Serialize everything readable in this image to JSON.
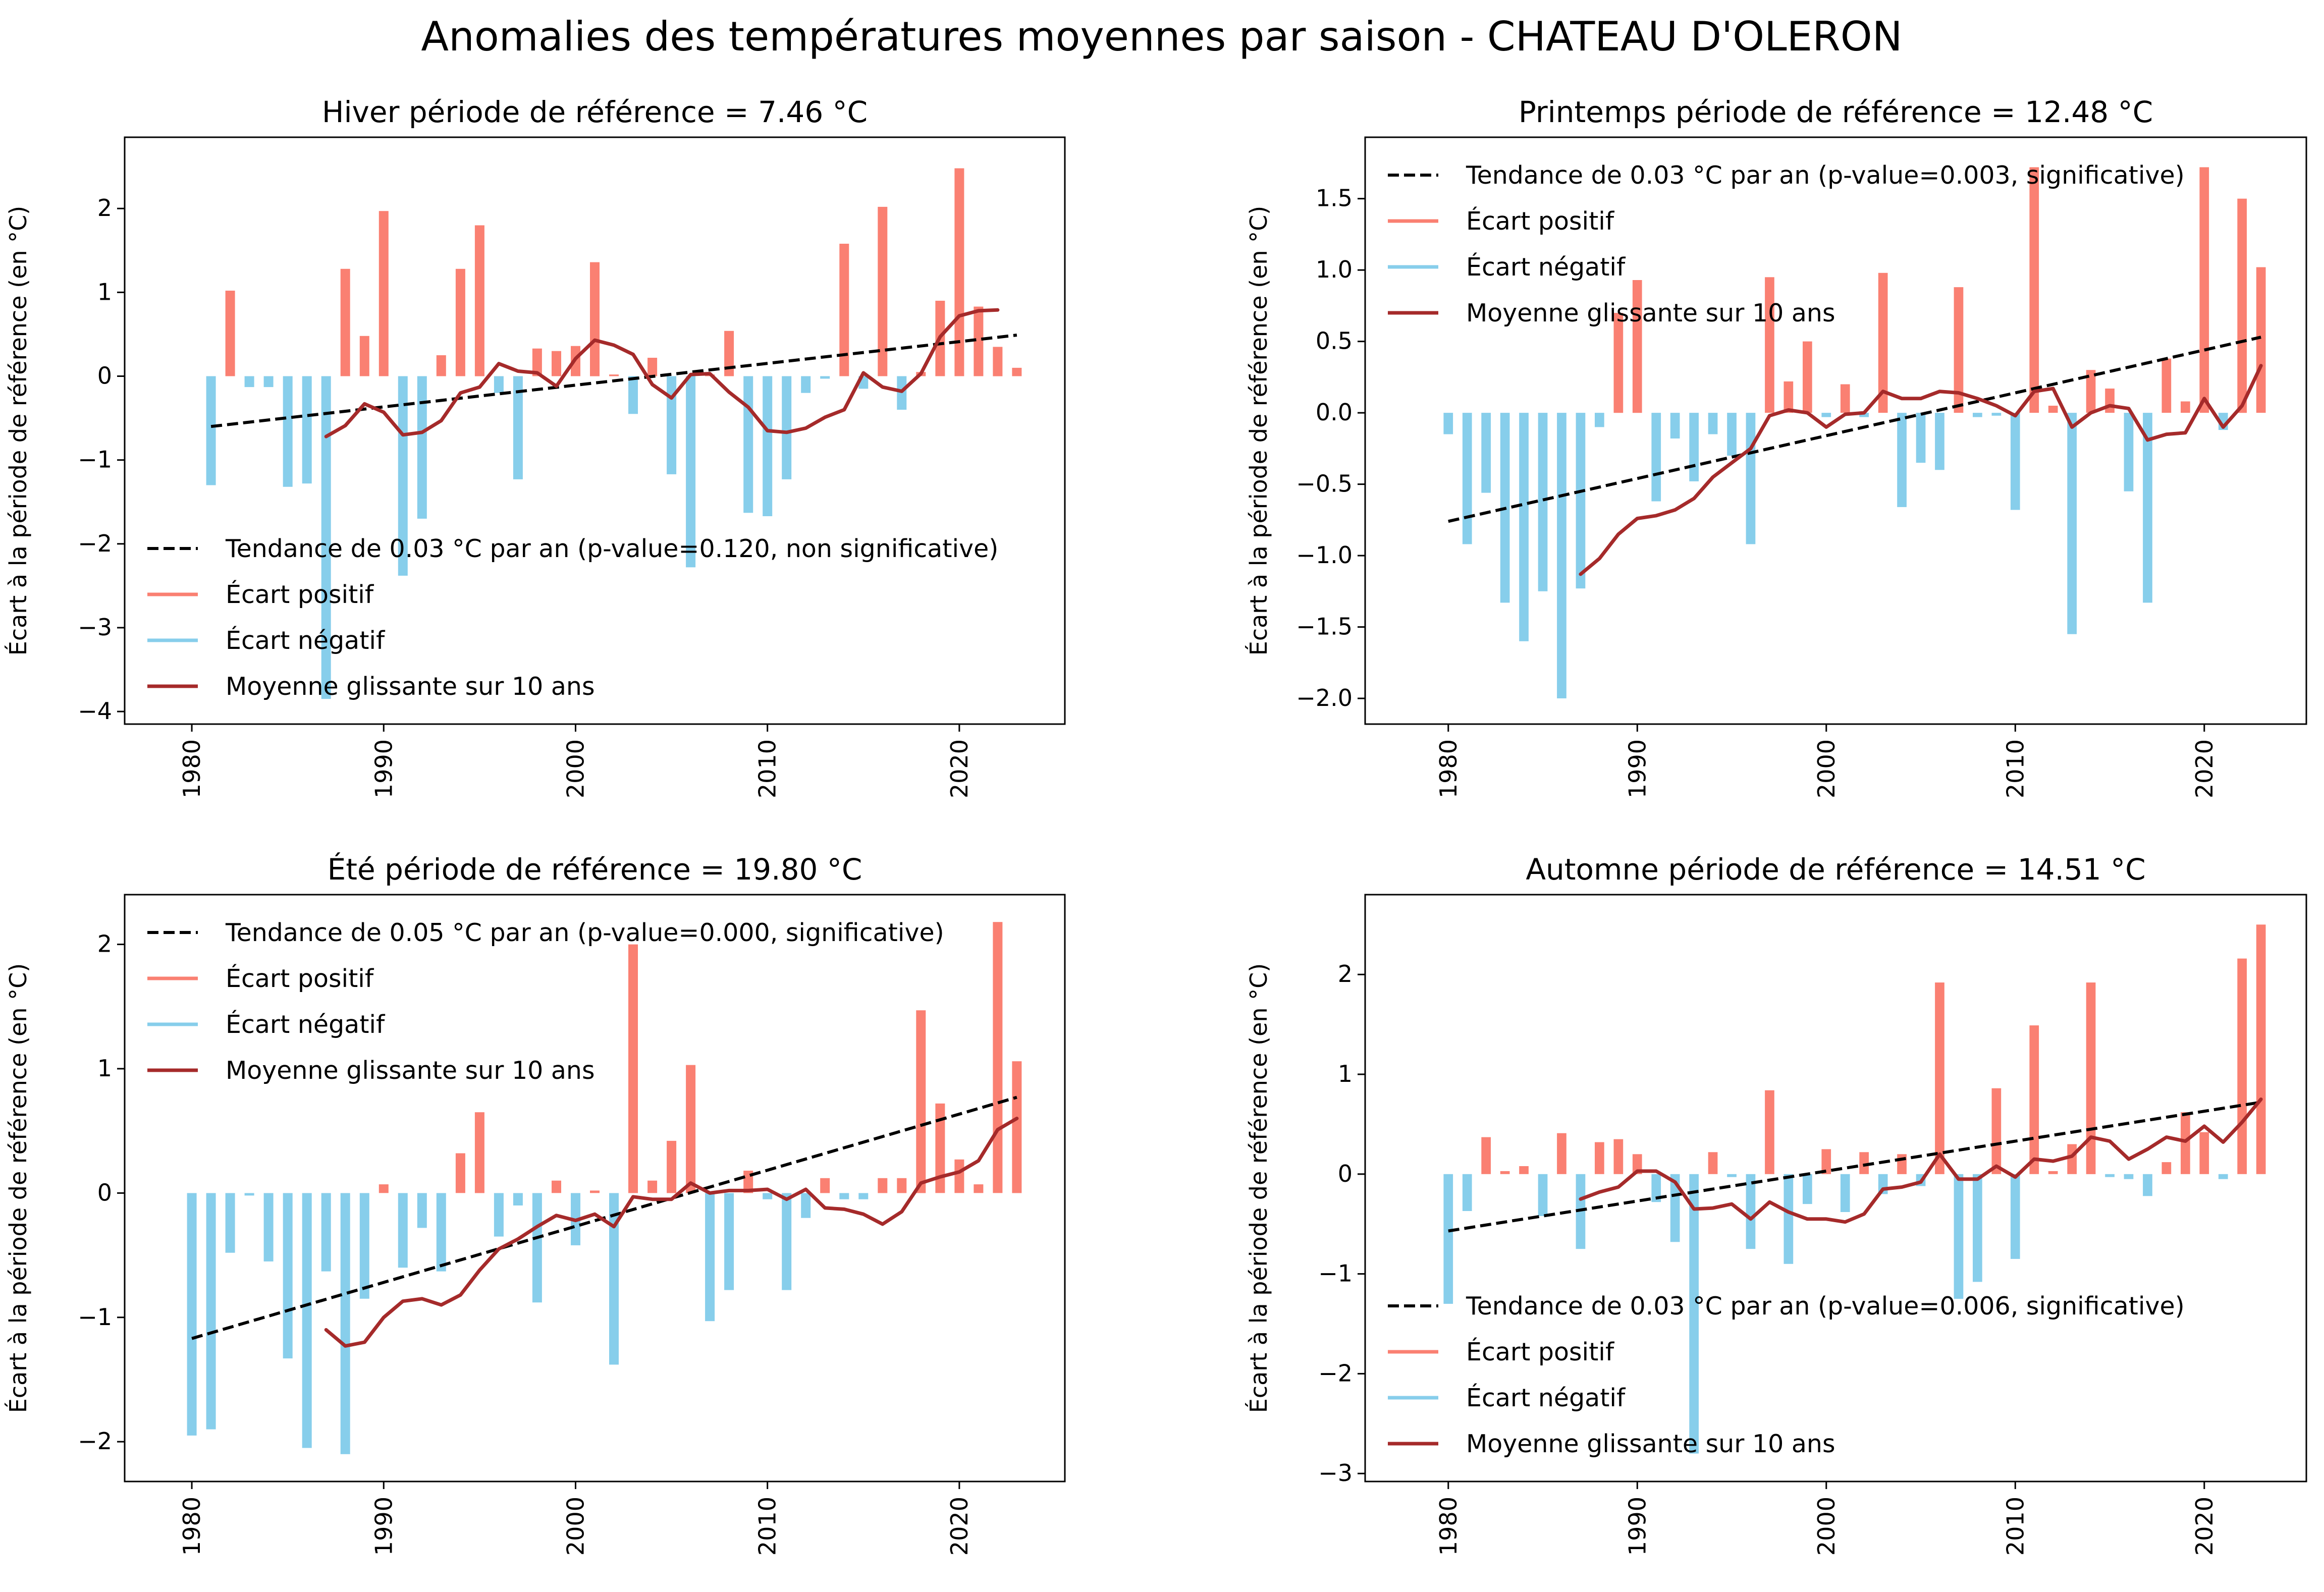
{
  "title": "Anomalies des températures moyennes par saison - CHATEAU D'OLERON",
  "colors": {
    "positive": "#fa8072",
    "negative": "#87ceeb",
    "rolling": "#a52a2a",
    "trend": "#000000",
    "axis": "#000000",
    "background": "#ffffff"
  },
  "chart_data": [
    {
      "type": "bar",
      "title": "Hiver période de référence = 7.46 °C",
      "ylabel": "Écart à la période de référence (en °C)",
      "xlabel": "",
      "xlim": [
        1976.5,
        2025.5
      ],
      "ylim": [
        -4.15,
        2.85
      ],
      "xticks": [
        1980,
        1990,
        2000,
        2010,
        2020
      ],
      "yticks": [
        -4,
        -3,
        -2,
        -1,
        0,
        1,
        2
      ],
      "grid": false,
      "legend_position": "bottom-left",
      "legend": [
        {
          "label": "Tendance de 0.03 °C par an (p-value=0.120, non significative)",
          "kind": "trend"
        },
        {
          "label": "Écart positif",
          "kind": "positive"
        },
        {
          "label": "Écart négatif",
          "kind": "negative"
        },
        {
          "label": "Moyenne glissante sur 10 ans",
          "kind": "rolling"
        }
      ],
      "x": [
        1981,
        1982,
        1983,
        1984,
        1985,
        1986,
        1987,
        1988,
        1989,
        1990,
        1991,
        1992,
        1993,
        1994,
        1995,
        1996,
        1997,
        1998,
        1999,
        2000,
        2001,
        2002,
        2003,
        2004,
        2005,
        2006,
        2007,
        2008,
        2009,
        2010,
        2011,
        2012,
        2013,
        2014,
        2015,
        2016,
        2017,
        2018,
        2019,
        2020,
        2021,
        2022,
        2023
      ],
      "values": [
        -1.3,
        1.02,
        -0.13,
        -0.13,
        -1.32,
        -1.28,
        -3.85,
        1.28,
        0.48,
        1.97,
        -2.38,
        -1.7,
        0.25,
        1.28,
        1.8,
        -0.2,
        -1.23,
        0.33,
        0.3,
        0.36,
        1.36,
        0.02,
        -0.45,
        0.22,
        -1.17,
        -2.28,
        0.02,
        0.54,
        -1.63,
        -1.67,
        -1.23,
        -0.2,
        -0.03,
        1.58,
        -0.15,
        2.02,
        -0.4,
        0.05,
        0.9,
        2.48,
        0.83,
        0.35,
        0.1
      ],
      "rolling_mean": {
        "x": [
          1987,
          1988,
          1989,
          1990,
          1991,
          1992,
          1993,
          1994,
          1995,
          1996,
          1997,
          1998,
          1999,
          2000,
          2001,
          2002,
          2003,
          2004,
          2005,
          2006,
          2007,
          2008,
          2009,
          2010,
          2011,
          2012,
          2013,
          2014,
          2015,
          2016,
          2017,
          2018,
          2019,
          2020,
          2021,
          2022,
          2023
        ],
        "values": [
          -0.72,
          -0.59,
          -0.33,
          -0.43,
          -0.7,
          -0.67,
          -0.53,
          -0.2,
          -0.13,
          0.15,
          0.06,
          0.04,
          -0.12,
          0.21,
          0.43,
          0.37,
          0.26,
          -0.1,
          -0.26,
          0.02,
          0.03,
          -0.19,
          -0.37,
          -0.65,
          -0.67,
          -0.62,
          -0.49,
          -0.4,
          0.04,
          -0.13,
          -0.18,
          0.03,
          0.47,
          0.72,
          0.78,
          0.79,
          null
        ]
      },
      "trend": {
        "x": [
          1981,
          2023
        ],
        "y": [
          -0.6,
          0.49
        ]
      }
    },
    {
      "type": "bar",
      "title": "Printemps période de référence = 12.48 °C",
      "ylabel": "Écart à la période de référence (en °C)",
      "xlabel": "",
      "xlim": [
        1975.6,
        2025.4
      ],
      "ylim": [
        -2.18,
        1.93
      ],
      "xticks": [
        1980,
        1990,
        2000,
        2010,
        2020
      ],
      "yticks": [
        -2.0,
        -1.5,
        -1.0,
        -0.5,
        0.0,
        0.5,
        1.0,
        1.5
      ],
      "ytick_labels": [
        "−2.0",
        "−1.5",
        "−1.0",
        "−0.5",
        "0.0",
        "0.5",
        "1.0",
        "1.5"
      ],
      "grid": false,
      "legend_position": "top-left",
      "legend": [
        {
          "label": "Tendance de 0.03 °C par an (p-value=0.003, significative)",
          "kind": "trend"
        },
        {
          "label": "Écart positif",
          "kind": "positive"
        },
        {
          "label": "Écart négatif",
          "kind": "negative"
        },
        {
          "label": "Moyenne glissante sur 10 ans",
          "kind": "rolling"
        }
      ],
      "x": [
        1980,
        1981,
        1982,
        1983,
        1984,
        1985,
        1986,
        1987,
        1988,
        1989,
        1990,
        1991,
        1992,
        1993,
        1994,
        1995,
        1996,
        1997,
        1998,
        1999,
        2000,
        2001,
        2002,
        2003,
        2004,
        2005,
        2006,
        2007,
        2008,
        2009,
        2010,
        2011,
        2012,
        2013,
        2014,
        2015,
        2016,
        2017,
        2018,
        2019,
        2020,
        2021,
        2022,
        2023
      ],
      "values": [
        -0.15,
        -0.92,
        -0.56,
        -1.33,
        -1.6,
        -1.25,
        -2.0,
        -1.23,
        -0.1,
        0.7,
        0.93,
        -0.62,
        -0.18,
        -0.48,
        -0.15,
        -0.3,
        -0.92,
        0.95,
        0.22,
        0.5,
        -0.03,
        0.2,
        -0.03,
        0.98,
        -0.66,
        -0.35,
        -0.4,
        0.88,
        -0.03,
        -0.02,
        -0.68,
        1.72,
        0.05,
        -1.55,
        0.3,
        0.17,
        -0.55,
        -1.33,
        0.38,
        0.08,
        1.72,
        -0.12,
        1.5,
        1.02
      ],
      "rolling_mean": {
        "x": [
          1987,
          1988,
          1989,
          1990,
          1991,
          1992,
          1993,
          1994,
          1995,
          1996,
          1997,
          1998,
          1999,
          2000,
          2001,
          2002,
          2003,
          2004,
          2005,
          2006,
          2007,
          2008,
          2009,
          2010,
          2011,
          2012,
          2013,
          2014,
          2015,
          2016,
          2017,
          2018,
          2019,
          2020,
          2021,
          2022,
          2023
        ],
        "values": [
          -1.13,
          -1.02,
          -0.85,
          -0.74,
          -0.72,
          -0.68,
          -0.6,
          -0.45,
          -0.35,
          -0.25,
          -0.02,
          0.02,
          0.0,
          -0.1,
          -0.01,
          0.0,
          0.15,
          0.1,
          0.1,
          0.15,
          0.14,
          0.1,
          0.05,
          -0.02,
          0.15,
          0.17,
          -0.1,
          0.0,
          0.05,
          0.03,
          -0.19,
          -0.15,
          -0.14,
          0.1,
          -0.1,
          0.05,
          0.33
        ]
      },
      "trend": {
        "x": [
          1980,
          2023
        ],
        "y": [
          -0.76,
          0.53
        ]
      }
    },
    {
      "type": "bar",
      "title": "Été période de référence = 19.80 °C",
      "ylabel": "Écart à la période de référence (en °C)",
      "xlabel": "",
      "xlim": [
        1976.5,
        2025.5
      ],
      "ylim": [
        -2.32,
        2.4
      ],
      "xticks": [
        1980,
        1990,
        2000,
        2010,
        2020
      ],
      "yticks": [
        -2,
        -1,
        0,
        1,
        2
      ],
      "ytick_labels": [
        "−2",
        "−1",
        "0",
        "1",
        "2"
      ],
      "grid": false,
      "legend_position": "top-left",
      "legend": [
        {
          "label": "Tendance de 0.05 °C par an (p-value=0.000, significative)",
          "kind": "trend"
        },
        {
          "label": "Écart positif",
          "kind": "positive"
        },
        {
          "label": "Écart négatif",
          "kind": "negative"
        },
        {
          "label": "Moyenne glissante sur 10 ans",
          "kind": "rolling"
        }
      ],
      "x": [
        1980,
        1981,
        1982,
        1983,
        1984,
        1985,
        1986,
        1987,
        1988,
        1989,
        1990,
        1991,
        1992,
        1993,
        1994,
        1995,
        1996,
        1997,
        1998,
        1999,
        2000,
        2001,
        2002,
        2003,
        2004,
        2005,
        2006,
        2007,
        2008,
        2009,
        2010,
        2011,
        2012,
        2013,
        2014,
        2015,
        2016,
        2017,
        2018,
        2019,
        2020,
        2021,
        2022,
        2023
      ],
      "values": [
        -1.95,
        -1.9,
        -0.48,
        -0.02,
        -0.55,
        -1.33,
        -2.05,
        -0.63,
        -2.1,
        -0.85,
        0.07,
        -0.6,
        -0.28,
        -0.63,
        0.32,
        0.65,
        -0.35,
        -0.1,
        -0.88,
        0.1,
        -0.42,
        0.02,
        -1.38,
        2.0,
        0.1,
        0.42,
        1.03,
        -1.03,
        -0.78,
        0.18,
        -0.05,
        -0.78,
        -0.2,
        0.12,
        -0.05,
        -0.05,
        0.12,
        0.12,
        1.47,
        0.72,
        0.27,
        0.07,
        2.18,
        1.06
      ],
      "rolling_mean": {
        "x": [
          1987,
          1988,
          1989,
          1990,
          1991,
          1992,
          1993,
          1994,
          1995,
          1996,
          1997,
          1998,
          1999,
          2000,
          2001,
          2002,
          2003,
          2004,
          2005,
          2006,
          2007,
          2008,
          2009,
          2010,
          2011,
          2012,
          2013,
          2014,
          2015,
          2016,
          2017,
          2018,
          2019,
          2020,
          2021,
          2022,
          2023
        ],
        "values": [
          -1.1,
          -1.23,
          -1.2,
          -1.0,
          -0.87,
          -0.85,
          -0.9,
          -0.82,
          -0.62,
          -0.45,
          -0.37,
          -0.27,
          -0.18,
          -0.22,
          -0.17,
          -0.27,
          -0.03,
          -0.05,
          -0.05,
          0.08,
          0.0,
          0.02,
          0.02,
          0.03,
          -0.05,
          0.03,
          -0.12,
          -0.13,
          -0.17,
          -0.25,
          -0.15,
          0.08,
          0.13,
          0.17,
          0.26,
          0.51,
          0.6
        ]
      },
      "trend": {
        "x": [
          1980,
          2023
        ],
        "y": [
          -1.17,
          0.77
        ]
      }
    },
    {
      "type": "bar",
      "title": "Automne période de référence = 14.51 °C",
      "ylabel": "Écart à la période de référence (en °C)",
      "xlabel": "",
      "xlim": [
        1975.6,
        2025.4
      ],
      "ylim": [
        -3.08,
        2.8
      ],
      "xticks": [
        1980,
        1990,
        2000,
        2010,
        2020
      ],
      "yticks": [
        -3,
        -2,
        -1,
        0,
        1,
        2
      ],
      "ytick_labels": [
        "−3",
        "−2",
        "−1",
        "0",
        "1",
        "2"
      ],
      "grid": false,
      "legend_position": "bottom-left",
      "legend": [
        {
          "label": "Tendance de 0.03 °C par an (p-value=0.006, significative)",
          "kind": "trend"
        },
        {
          "label": "Écart positif",
          "kind": "positive"
        },
        {
          "label": "Écart négatif",
          "kind": "negative"
        },
        {
          "label": "Moyenne glissante sur 10 ans",
          "kind": "rolling"
        }
      ],
      "x": [
        1980,
        1981,
        1982,
        1983,
        1984,
        1985,
        1986,
        1987,
        1988,
        1989,
        1990,
        1991,
        1992,
        1993,
        1994,
        1995,
        1996,
        1997,
        1998,
        1999,
        2000,
        2001,
        2002,
        2003,
        2004,
        2005,
        2006,
        2007,
        2008,
        2009,
        2010,
        2011,
        2012,
        2013,
        2014,
        2015,
        2016,
        2017,
        2018,
        2019,
        2020,
        2021,
        2022,
        2023
      ],
      "values": [
        -1.3,
        -0.37,
        0.37,
        0.03,
        0.08,
        -0.42,
        0.41,
        -0.75,
        0.32,
        0.35,
        0.2,
        -0.28,
        -0.68,
        -2.8,
        0.22,
        -0.03,
        -0.75,
        0.84,
        -0.9,
        -0.3,
        0.25,
        -0.38,
        0.22,
        -0.2,
        0.2,
        -0.12,
        1.92,
        -1.25,
        -1.08,
        0.86,
        -0.85,
        1.49,
        0.03,
        0.3,
        1.92,
        -0.03,
        -0.05,
        -0.22,
        0.12,
        0.62,
        0.42,
        -0.05,
        2.16,
        2.5
      ],
      "rolling_mean": {
        "x": [
          1987,
          1988,
          1989,
          1990,
          1991,
          1992,
          1993,
          1994,
          1995,
          1996,
          1997,
          1998,
          1999,
          2000,
          2001,
          2002,
          2003,
          2004,
          2005,
          2006,
          2007,
          2008,
          2009,
          2010,
          2011,
          2012,
          2013,
          2014,
          2015,
          2016,
          2017,
          2018,
          2019,
          2020,
          2021,
          2022,
          2023
        ],
        "values": [
          -0.25,
          -0.18,
          -0.13,
          0.03,
          0.03,
          -0.08,
          -0.35,
          -0.34,
          -0.3,
          -0.45,
          -0.28,
          -0.38,
          -0.45,
          -0.45,
          -0.48,
          -0.4,
          -0.15,
          -0.13,
          -0.08,
          0.2,
          -0.05,
          -0.05,
          0.08,
          -0.03,
          0.15,
          0.13,
          0.18,
          0.37,
          0.33,
          0.15,
          0.25,
          0.37,
          0.33,
          0.48,
          0.32,
          0.52,
          0.75
        ]
      },
      "trend": {
        "x": [
          1980,
          2023
        ],
        "y": [
          -0.57,
          0.72
        ]
      }
    }
  ]
}
